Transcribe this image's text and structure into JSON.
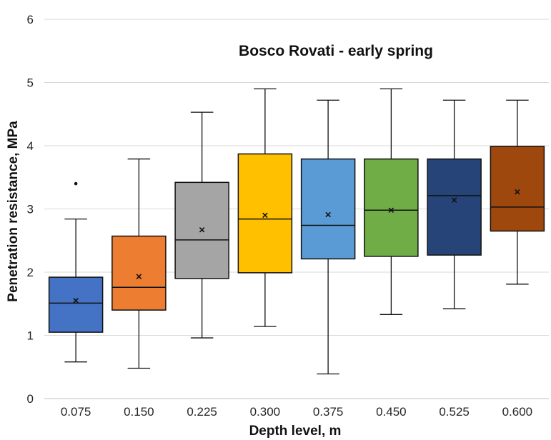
{
  "chart_data": {
    "type": "box",
    "title": "Bosco Rovati - early spring",
    "xlabel": "Depth level, m",
    "ylabel": "Penetration resistance, MPa",
    "ylim": [
      0,
      6
    ],
    "yticks": [
      "0",
      "1",
      "2",
      "3",
      "4",
      "5",
      "6"
    ],
    "grid": true,
    "categories": [
      "0.075",
      "0.150",
      "0.225",
      "0.300",
      "0.375",
      "0.450",
      "0.525",
      "0.600"
    ],
    "colors": [
      "#4472C4",
      "#ED7D31",
      "#A5A5A5",
      "#FFC000",
      "#5B9BD5",
      "#70AD47",
      "#264478",
      "#9E480E"
    ],
    "boxes": [
      {
        "min": 0.58,
        "q1": 1.05,
        "median": 1.51,
        "q3": 1.92,
        "max": 2.84,
        "mean": 1.55,
        "outliers": [
          3.4
        ]
      },
      {
        "min": 0.48,
        "q1": 1.4,
        "median": 1.76,
        "q3": 2.57,
        "max": 3.79,
        "mean": 1.93,
        "outliers": []
      },
      {
        "min": 0.96,
        "q1": 1.9,
        "median": 2.51,
        "q3": 3.42,
        "max": 4.53,
        "mean": 2.67,
        "outliers": []
      },
      {
        "min": 1.14,
        "q1": 1.99,
        "median": 2.84,
        "q3": 3.87,
        "max": 4.9,
        "mean": 2.9,
        "outliers": []
      },
      {
        "min": 0.39,
        "q1": 2.21,
        "median": 2.74,
        "q3": 3.79,
        "max": 4.72,
        "mean": 2.91,
        "outliers": []
      },
      {
        "min": 1.33,
        "q1": 2.25,
        "median": 2.98,
        "q3": 3.79,
        "max": 4.9,
        "mean": 2.98,
        "outliers": []
      },
      {
        "min": 1.42,
        "q1": 2.27,
        "median": 3.21,
        "q3": 3.79,
        "max": 4.72,
        "mean": 3.14,
        "outliers": []
      },
      {
        "min": 1.81,
        "q1": 2.65,
        "median": 3.03,
        "q3": 3.99,
        "max": 4.72,
        "mean": 3.27,
        "outliers": []
      }
    ]
  }
}
